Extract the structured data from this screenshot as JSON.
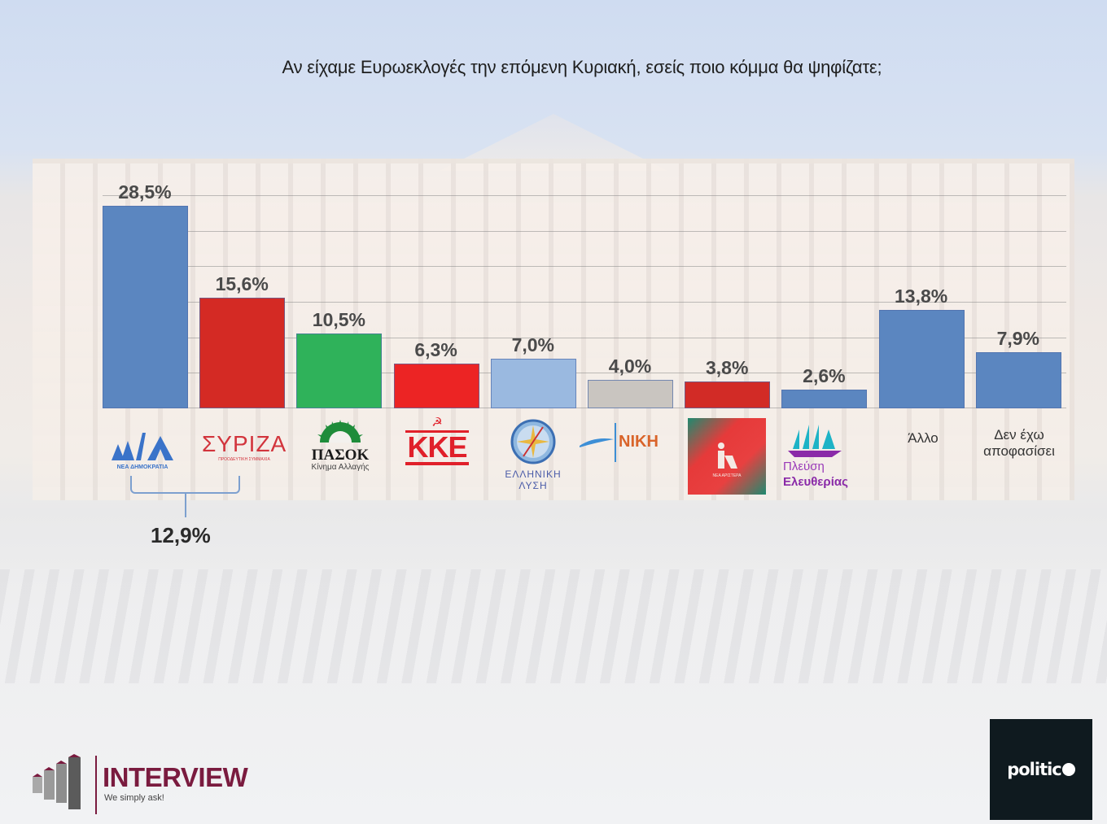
{
  "title": "Αν είχαμε Ευρωεκλογές την επόμενη Κυριακή, εσείς ποιο κόμμα θα ψηφίζατε;",
  "chart_data": {
    "type": "bar",
    "title": "Αν είχαμε Ευρωεκλογές την επόμενη Κυριακή, εσείς ποιο κόμμα θα ψηφίζατε;",
    "xlabel": "",
    "ylabel": "",
    "ylim": [
      0,
      30
    ],
    "grid": true,
    "gridline_step": 5,
    "legend": "none",
    "categories": [
      "ΝΔ",
      "ΣΥΡΙΖΑ",
      "ΠΑΣΟΚ",
      "ΚΚΕ",
      "Ελληνική Λύση",
      "ΝΙΚΗ",
      "Νέα Αριστερά",
      "Πλεύση Ελευθερίας",
      "Άλλο",
      "Δεν έχω αποφασίσει"
    ],
    "values": [
      28.5,
      15.6,
      10.5,
      6.3,
      7.0,
      4.0,
      3.8,
      2.6,
      13.8,
      7.9
    ],
    "value_labels": [
      "28,5%",
      "15,6%",
      "10,5%",
      "6,3%",
      "7,0%",
      "4,0%",
      "3,8%",
      "2,6%",
      "13,8%",
      "7,9%"
    ],
    "colors": [
      "#5b86c0",
      "#d42a24",
      "#2fb25a",
      "#ec2424",
      "#9ab9e0",
      "#c9c5c0",
      "#d22b26",
      "#5b86c0",
      "#5b86c0",
      "#5b86c0"
    ],
    "annotations": [
      {
        "text": "12,9%",
        "description": "Difference between ΝΔ and ΣΥΡΙΖΑ, shown with bracket"
      }
    ]
  },
  "logos": {
    "nd": {
      "mark": "ΝΔ",
      "sub": "ΝΕΑ ΔΗΜΟΚΡΑΤΙΑ"
    },
    "syriza": {
      "mark": "ΣΥΡΙΖΑ",
      "sub": "ΠΡΟΟΔΕΥΤΙΚΗ ΣΥΜΜΑΧΙΑ"
    },
    "pasok": {
      "mark": "ΠΑΣΟΚ",
      "sub": "Κίνημα Αλλαγής"
    },
    "kke": {
      "mark": "ΚΚΕ"
    },
    "elliniki": {
      "line1": "ΕΛΛΗΝΙΚΗ",
      "line2": "ΛΥΣΗ"
    },
    "niki": {
      "mark": "ΝΙΚΗ"
    },
    "nea_aristera": {
      "sub": "ΝΕΑ ΑΡΙΣΤΕΡΑ"
    },
    "plefsi": {
      "line1": "Πλεύση",
      "line2": "Ελευθερίας"
    }
  },
  "categories_text": {
    "allo": "Άλλο",
    "den_exo_line1": "Δεν έχω",
    "den_exo_line2": "αποφασίσει"
  },
  "combined_label": "12,9%",
  "footer": {
    "interview_brand": "INTERVIEW",
    "interview_tagline": "We simply ask!",
    "media_brand": "politic",
    "brand_color": "#7a1b3f"
  }
}
